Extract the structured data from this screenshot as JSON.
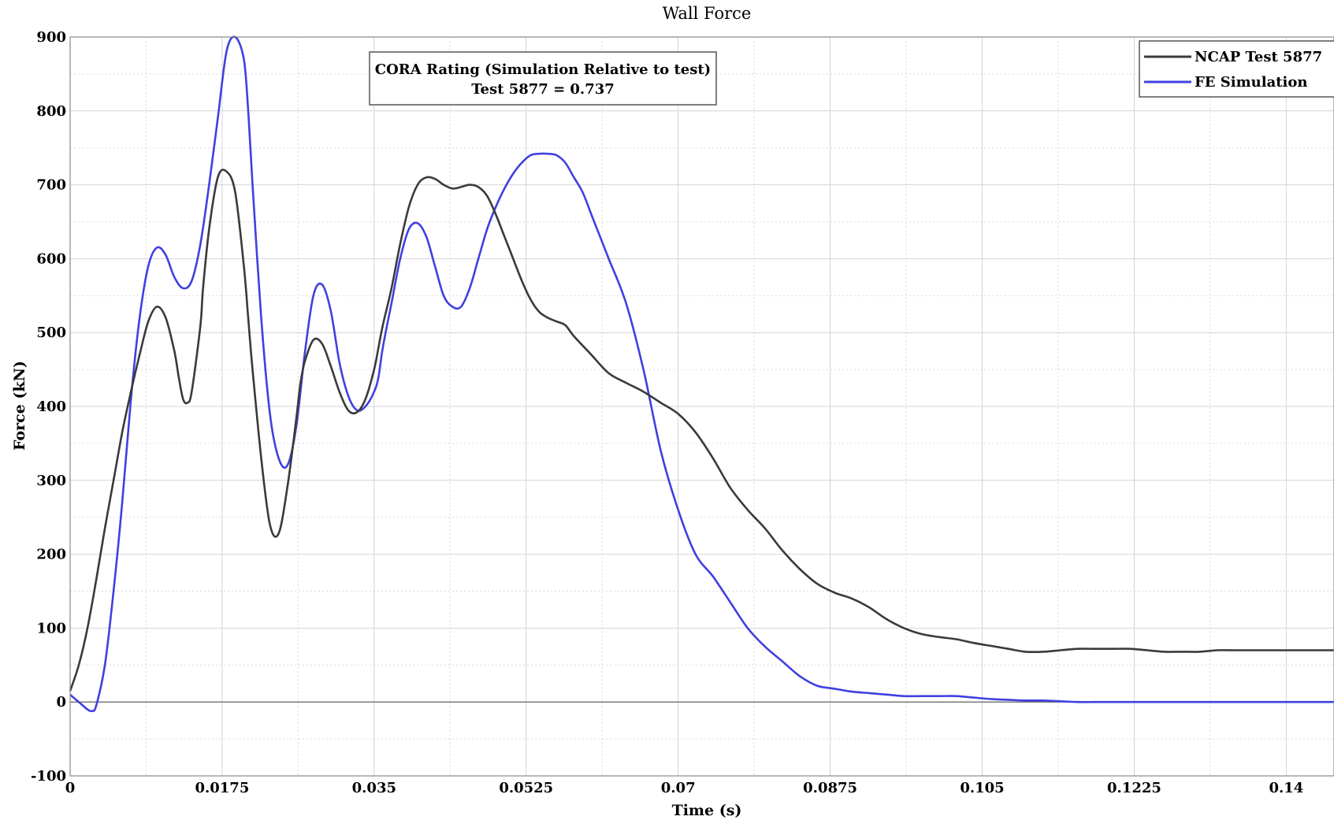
{
  "chart_data": {
    "type": "line",
    "title": "Wall Force",
    "xlabel": "Time (s)",
    "ylabel": "Force (kN)",
    "xlim": [
      0,
      0.1455
    ],
    "ylim": [
      -100,
      900
    ],
    "grid": true,
    "x_ticks": [
      0,
      0.0175,
      0.035,
      0.0525,
      0.07,
      0.0875,
      0.105,
      0.1225,
      0.14
    ],
    "x_tick_labels": [
      "0",
      "0.0175",
      "0.035",
      "0.0525",
      "0.07",
      "0.0875",
      "0.105",
      "0.1225",
      "0.14"
    ],
    "y_ticks": [
      -100,
      0,
      100,
      200,
      300,
      400,
      500,
      600,
      700,
      800,
      900
    ],
    "y_tick_labels": [
      "-100",
      "0",
      "100",
      "200",
      "300",
      "400",
      "500",
      "600",
      "700",
      "800",
      "900"
    ],
    "annotation": {
      "line1": "CORA Rating (Simulation Relative to test)",
      "line2": "Test 5877 = 0.737"
    },
    "legend_position": "top-right",
    "series": [
      {
        "name": "NCAP Test 5877",
        "color": "#3a3a3a",
        "x": [
          0,
          0.001,
          0.002,
          0.003,
          0.004,
          0.005,
          0.006,
          0.007,
          0.008,
          0.009,
          0.01,
          0.011,
          0.012,
          0.0125,
          0.013,
          0.0135,
          0.014,
          0.015,
          0.0153,
          0.016,
          0.017,
          0.018,
          0.019,
          0.02,
          0.0205,
          0.021,
          0.022,
          0.023,
          0.024,
          0.025,
          0.026,
          0.0265,
          0.027,
          0.028,
          0.029,
          0.03,
          0.031,
          0.032,
          0.033,
          0.034,
          0.035,
          0.0355,
          0.036,
          0.037,
          0.038,
          0.039,
          0.04,
          0.041,
          0.042,
          0.043,
          0.044,
          0.045,
          0.046,
          0.047,
          0.048,
          0.049,
          0.05,
          0.051,
          0.052,
          0.053,
          0.054,
          0.055,
          0.056,
          0.057,
          0.058,
          0.06,
          0.062,
          0.064,
          0.066,
          0.068,
          0.07,
          0.072,
          0.074,
          0.076,
          0.078,
          0.08,
          0.082,
          0.084,
          0.086,
          0.088,
          0.09,
          0.092,
          0.094,
          0.096,
          0.098,
          0.1,
          0.102,
          0.104,
          0.106,
          0.108,
          0.11,
          0.112,
          0.114,
          0.116,
          0.118,
          0.12,
          0.122,
          0.124,
          0.126,
          0.128,
          0.13,
          0.132,
          0.134,
          0.136,
          0.138,
          0.14,
          0.142,
          0.144,
          0.1455
        ],
        "y": [
          15,
          50,
          100,
          165,
          235,
          300,
          365,
          420,
          470,
          515,
          535,
          520,
          475,
          440,
          410,
          405,
          420,
          510,
          560,
          640,
          710,
          718,
          690,
          590,
          520,
          450,
          330,
          240,
          228,
          290,
          380,
          430,
          460,
          490,
          485,
          455,
          420,
          395,
          392,
          410,
          450,
          480,
          510,
          560,
          620,
          670,
          700,
          710,
          708,
          700,
          695,
          697,
          700,
          697,
          685,
          660,
          630,
          600,
          570,
          545,
          528,
          520,
          515,
          510,
          495,
          470,
          445,
          432,
          420,
          405,
          390,
          365,
          330,
          290,
          260,
          235,
          205,
          180,
          160,
          148,
          140,
          128,
          112,
          100,
          92,
          88,
          85,
          80,
          76,
          72,
          68,
          68,
          70,
          72,
          72,
          72,
          72,
          70,
          68,
          68,
          68,
          70,
          70,
          70,
          70,
          70,
          70,
          70,
          70
        ],
        "note_units": "x in s, y in kN"
      },
      {
        "name": "FE Simulation",
        "color": "#4040e0",
        "x": [
          0,
          0.001,
          0.002,
          0.0025,
          0.003,
          0.004,
          0.005,
          0.006,
          0.007,
          0.008,
          0.009,
          0.01,
          0.011,
          0.012,
          0.013,
          0.014,
          0.015,
          0.016,
          0.017,
          0.018,
          0.019,
          0.02,
          0.0205,
          0.021,
          0.022,
          0.023,
          0.024,
          0.025,
          0.026,
          0.027,
          0.028,
          0.029,
          0.03,
          0.031,
          0.032,
          0.033,
          0.034,
          0.035,
          0.0355,
          0.036,
          0.037,
          0.038,
          0.039,
          0.04,
          0.041,
          0.042,
          0.043,
          0.044,
          0.045,
          0.046,
          0.047,
          0.048,
          0.049,
          0.05,
          0.051,
          0.052,
          0.053,
          0.054,
          0.055,
          0.056,
          0.057,
          0.058,
          0.059,
          0.06,
          0.061,
          0.062,
          0.064,
          0.066,
          0.068,
          0.07,
          0.072,
          0.074,
          0.076,
          0.078,
          0.08,
          0.082,
          0.084,
          0.086,
          0.088,
          0.09,
          0.092,
          0.094,
          0.096,
          0.098,
          0.1,
          0.102,
          0.104,
          0.106,
          0.108,
          0.11,
          0.112,
          0.114,
          0.116,
          0.118,
          0.12,
          0.122,
          0.124,
          0.126,
          0.128,
          0.13,
          0.132,
          0.134,
          0.136,
          0.138,
          0.14,
          0.142,
          0.144,
          0.1455
        ],
        "y": [
          10,
          0,
          -10,
          -12,
          -5,
          50,
          150,
          270,
          410,
          520,
          590,
          615,
          605,
          575,
          560,
          570,
          620,
          700,
          790,
          880,
          900,
          870,
          800,
          700,
          520,
          390,
          330,
          320,
          370,
          470,
          550,
          565,
          530,
          460,
          415,
          395,
          400,
          420,
          440,
          480,
          540,
          600,
          640,
          648,
          630,
          590,
          550,
          535,
          535,
          560,
          600,
          640,
          670,
          695,
          715,
          730,
          740,
          742,
          742,
          740,
          730,
          710,
          690,
          660,
          630,
          600,
          540,
          450,
          340,
          260,
          200,
          170,
          135,
          100,
          75,
          55,
          35,
          22,
          18,
          14,
          12,
          10,
          8,
          8,
          8,
          8,
          6,
          4,
          3,
          2,
          2,
          1,
          0,
          0,
          0,
          0,
          0,
          0,
          0,
          0,
          0,
          0,
          0,
          0,
          0,
          0,
          0,
          0
        ],
        "note_units": "x in s, y in kN"
      }
    ]
  }
}
